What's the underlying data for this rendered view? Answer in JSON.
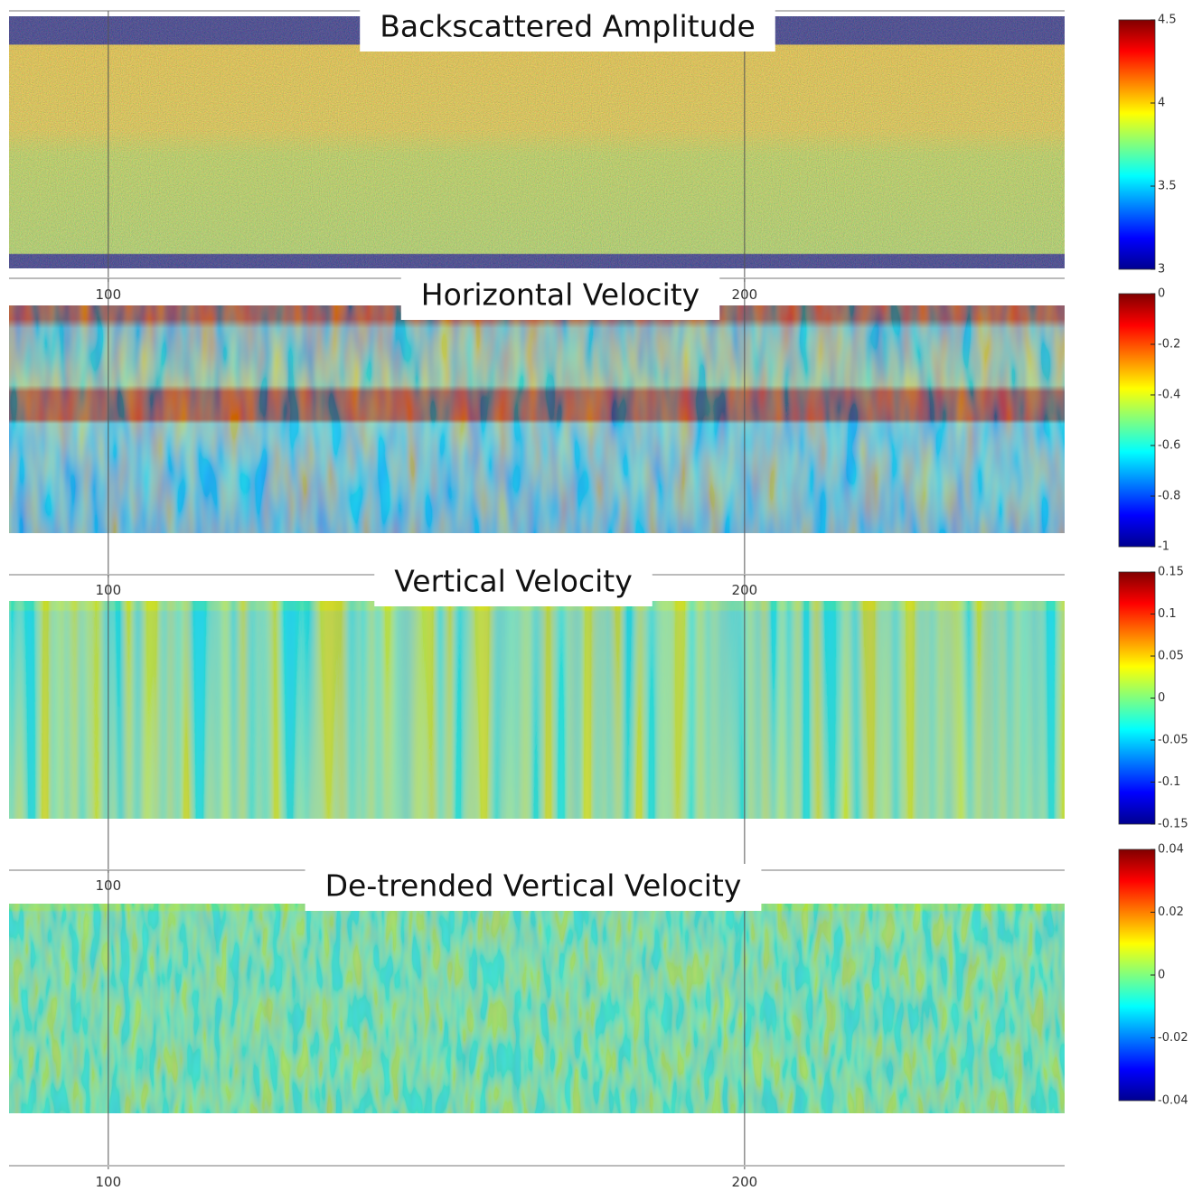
{
  "chart_data": [
    {
      "type": "heatmap",
      "title": "Backscattered Amplitude",
      "xlim": [
        84.4,
        250.3
      ],
      "xticks": [
        100,
        200
      ],
      "colormap": "jet",
      "colorbar": {
        "clim": [
          3,
          4.5
        ],
        "ticks": [
          3,
          3.5,
          4,
          4.5
        ]
      }
    },
    {
      "type": "heatmap",
      "title": "Horizontal Velocity",
      "xlim": [
        84.4,
        250.3
      ],
      "xticks": [
        100,
        200
      ],
      "colormap": "jet",
      "colorbar": {
        "clim": [
          -1,
          0
        ],
        "ticks": [
          0,
          -0.2,
          -0.4,
          -0.6,
          -0.8,
          -1
        ]
      }
    },
    {
      "type": "heatmap",
      "title": "Vertical Velocity",
      "xlim": [
        84.4,
        250.3
      ],
      "xticks": [
        100,
        200
      ],
      "colormap": "jet",
      "colorbar": {
        "clim": [
          -0.15,
          0.15
        ],
        "ticks": [
          0.15,
          0.1,
          0.05,
          0,
          -0.05,
          -0.1,
          -0.15
        ]
      }
    },
    {
      "type": "heatmap",
      "title": "De-trended Vertical Velocity",
      "xlim": [
        84.4,
        250.3
      ],
      "xticks": [
        100,
        200
      ],
      "colormap": "jet",
      "colorbar": {
        "clim": [
          -0.04,
          0.04
        ],
        "ticks": [
          0.04,
          0.02,
          0,
          -0.02,
          -0.04
        ]
      }
    }
  ]
}
